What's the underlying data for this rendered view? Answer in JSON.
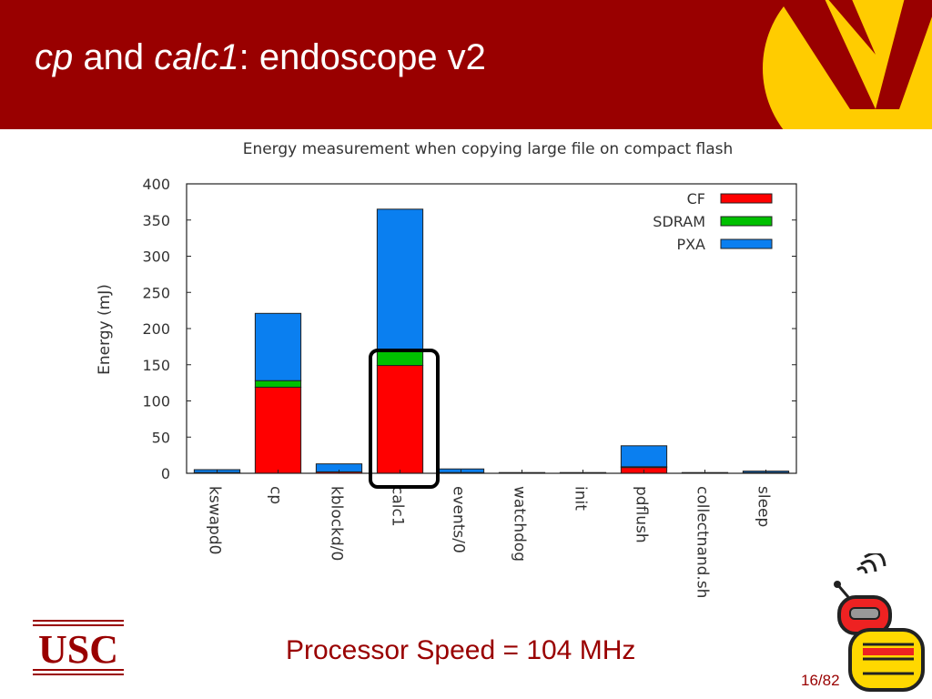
{
  "slide": {
    "title_cp": "cp",
    "title_and": " and ",
    "title_calc1": "calc1",
    "title_rest": ": endoscope v2",
    "org_logo_text": "USC",
    "footer_text": "Processor Speed = 104  MHz",
    "page_number": "16/82"
  },
  "colors": {
    "header": "#990000",
    "logo_gold": "#FFCC00",
    "CF": "#FF0000",
    "SDRAM": "#00C000",
    "PXA": "#0A7FF0"
  },
  "chart_data": {
    "type": "bar",
    "stacked": true,
    "title": "Energy measurement when copying large file on compact flash",
    "ylabel": "Energy (mJ)",
    "xlabel": "",
    "ylim": [
      0,
      400
    ],
    "yticks": [
      0,
      50,
      100,
      150,
      200,
      250,
      300,
      350,
      400
    ],
    "categories": [
      "kswapd0",
      "cp",
      "kblockd/0",
      "calc1",
      "events/0",
      "watchdog",
      "init",
      "pdflush",
      "collectnand.sh",
      "sleep"
    ],
    "series": [
      {
        "name": "CF",
        "values": [
          1,
          119,
          2,
          149,
          1,
          0,
          0,
          8,
          0,
          1
        ]
      },
      {
        "name": "SDRAM",
        "values": [
          0,
          9,
          0,
          21,
          0,
          0,
          0,
          1,
          0,
          0
        ]
      },
      {
        "name": "PXA",
        "values": [
          4,
          93,
          11,
          195,
          5,
          1,
          1,
          29,
          1,
          2
        ]
      }
    ],
    "legend_position": "top-right",
    "highlighted_category": "calc1"
  }
}
